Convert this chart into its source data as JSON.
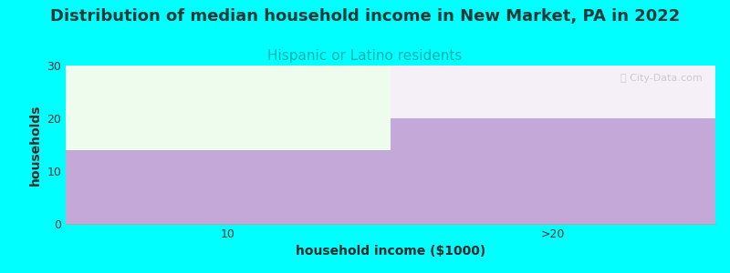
{
  "title": "Distribution of median household income in New Market, PA in 2022",
  "subtitle": "Hispanic or Latino residents",
  "subtitle_color": "#00b0b0",
  "xlabel": "household income ($1000)",
  "ylabel": "households",
  "background_color": "#00ffff",
  "bar_categories": [
    "10",
    ">20"
  ],
  "bar_values": [
    14,
    20
  ],
  "bar_color": "#c4a8d8",
  "ylim": [
    0,
    30
  ],
  "yticks": [
    0,
    10,
    20,
    30
  ],
  "xtick_labels": [
    "10",
    ">20"
  ],
  "title_fontsize": 13,
  "subtitle_fontsize": 11,
  "axis_label_fontsize": 10,
  "watermark_text": "ⓘ City-Data.com",
  "plot_bg_color": "#ffffff",
  "green_patch_color": "#edfced",
  "right_bg_color": "#f5f0f8"
}
